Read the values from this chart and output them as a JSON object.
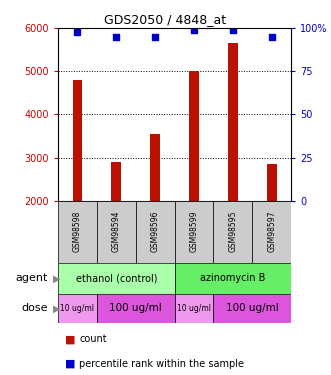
{
  "title": "GDS2050 / 4848_at",
  "samples": [
    "GSM98598",
    "GSM98594",
    "GSM98596",
    "GSM98599",
    "GSM98595",
    "GSM98597"
  ],
  "counts": [
    4800,
    2900,
    3550,
    5000,
    5650,
    2850
  ],
  "percentile_ranks": [
    98,
    95,
    95,
    99,
    99,
    95
  ],
  "ylim_left": [
    2000,
    6000
  ],
  "ylim_right": [
    0,
    100
  ],
  "bar_color": "#bb1100",
  "dot_color": "#0000cc",
  "yticks_left": [
    2000,
    3000,
    4000,
    5000,
    6000
  ],
  "ytick_labels_left": [
    "2000",
    "3000",
    "4000",
    "5000",
    "6000"
  ],
  "yticks_right": [
    0,
    25,
    50,
    75,
    100
  ],
  "ytick_labels_right": [
    "0",
    "25",
    "50",
    "75",
    "100%"
  ],
  "agent_groups": [
    {
      "label": "ethanol (control)",
      "start": 0,
      "end": 3,
      "color": "#aaffaa"
    },
    {
      "label": "azinomycin B",
      "start": 3,
      "end": 6,
      "color": "#66ee66"
    }
  ],
  "dose_groups": [
    {
      "label": "10 ug/ml",
      "start": 0,
      "end": 1,
      "color": "#ee99ee",
      "fontsize": 5.5
    },
    {
      "label": "100 ug/ml",
      "start": 1,
      "end": 3,
      "color": "#dd55dd",
      "fontsize": 7.5
    },
    {
      "label": "10 ug/ml",
      "start": 3,
      "end": 4,
      "color": "#ee99ee",
      "fontsize": 5.5
    },
    {
      "label": "100 ug/ml",
      "start": 4,
      "end": 6,
      "color": "#dd55dd",
      "fontsize": 7.5
    }
  ],
  "ylabel_left_color": "#cc0000",
  "ylabel_right_color": "#0000cc",
  "sample_bg_color": "#cccccc",
  "bar_width": 0.25
}
